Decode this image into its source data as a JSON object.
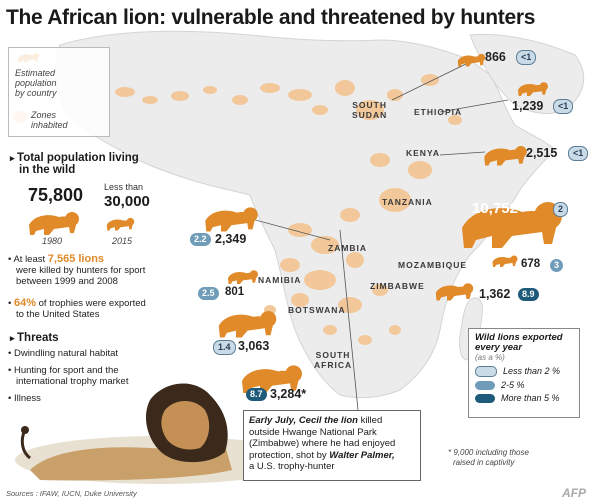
{
  "title": "The African lion: vulnerable and threatened by hunters",
  "legend": {
    "estimated_line1": "Estimated",
    "estimated_line2": "population",
    "estimated_line3": "by country",
    "zones_line1": "Zones",
    "zones_line2": "inhabited",
    "zone_color": "#f2c89a",
    "land_color": "#ededed"
  },
  "countries": {
    "south_sudan_line1": "SOUTH",
    "south_sudan_line2": "SUDAN",
    "ethiopia": "ETHIOPIA",
    "kenya": "KENYA",
    "tanzania": "TANZANIA",
    "zambia": "ZAMBIA",
    "mozambique": "MOZAMBIQUE",
    "namibia": "NAMIBIA",
    "zimbabwe": "ZIMBABWE",
    "botswana": "BOTSWANA",
    "south_africa_line1": "SOUTH",
    "south_africa_line2": "AFRICA"
  },
  "populations": {
    "south_sudan": {
      "value": "866",
      "export": "<1",
      "tier": "light"
    },
    "ethiopia": {
      "value": "1,239",
      "export": "<1",
      "tier": "light"
    },
    "kenya": {
      "value": "2,515",
      "export": "<1",
      "tier": "light"
    },
    "tanzania": {
      "value": "10,752",
      "export": "2",
      "tier": "light"
    },
    "zambia": {
      "value": "2,349",
      "export": "2.2",
      "tier": "mid"
    },
    "mozambique": {
      "value": "678",
      "export": "3",
      "tier": "mid"
    },
    "namibia": {
      "value": "801",
      "export": "2.5",
      "tier": "mid"
    },
    "zimbabwe": {
      "value": "1,362",
      "export": "8.9",
      "tier": "dark"
    },
    "botswana": {
      "value": "3,063",
      "export": "1.4",
      "tier": "light"
    },
    "south_africa": {
      "value": "3,284*",
      "export": "8.7",
      "tier": "dark"
    }
  },
  "total": {
    "title_line1": "Total population living",
    "title_line2": "in the wild",
    "value_1980": "75,800",
    "less_than": "Less than",
    "value_2015": "30,000",
    "year_1980": "1980",
    "year_2015": "2015"
  },
  "facts": {
    "fact1_pre": "At least",
    "fact1_num": "7,565 lions",
    "fact1_line2": "were killed by hunters for sport",
    "fact1_line3": "between 1999 and 2008",
    "fact2_num": "64%",
    "fact2_rest": "of trophies were exported",
    "fact2_line2": "to the United States"
  },
  "threats": {
    "title": "Threats",
    "item1": "Dwindling natural habitat",
    "item2_line1": "Hunting for sport and the",
    "item2_line2": "international trophy market",
    "item3": "Illness"
  },
  "callout": {
    "line1_bold": "Early July, Cecil the lion",
    "line1_rest": " killed",
    "line2": "outside Hwange National Park",
    "line3": "(Zimbabwe) where he had enjoyed",
    "line4_pre": "protection, shot by ",
    "line4_bold": "Walter Palmer,",
    "line5": "a U.S. trophy-hunter"
  },
  "exported": {
    "title_line1": "Wild lions exported",
    "title_line2": "every year",
    "title_line3": "(as a %)",
    "item1": "Less than 2 %",
    "item2": "2-5 %",
    "item3": "More than 5 %",
    "color_light": "#c8dbe6",
    "color_mid": "#6f9cb8",
    "color_dark": "#1e5a7a"
  },
  "footnote_line1": "* 9,000 including those",
  "footnote_line2": "raised in captivity",
  "sources": "Sources : IFAW, IUCN, Duke University",
  "brand": "AFP"
}
